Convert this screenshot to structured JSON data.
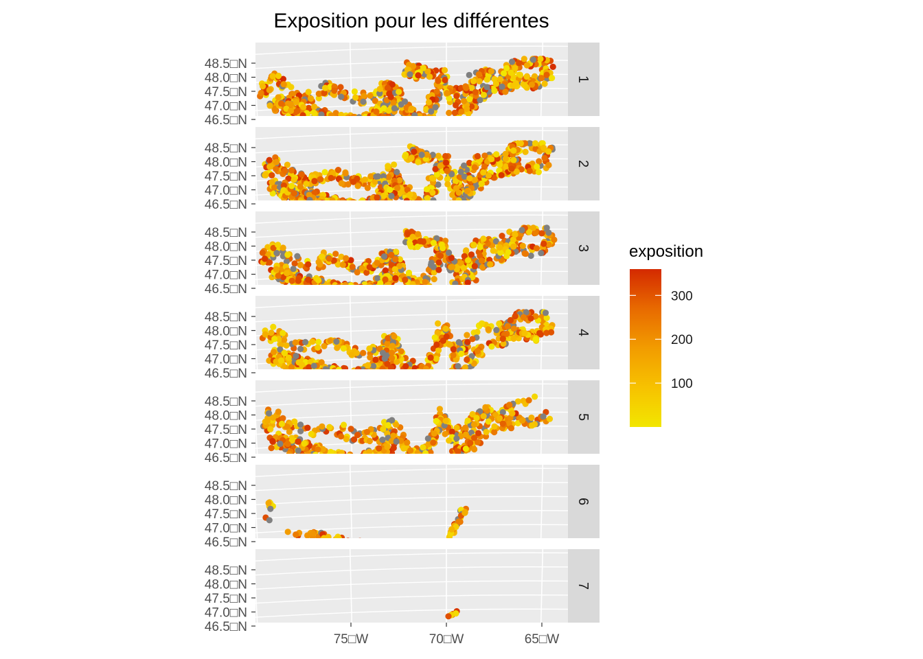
{
  "chart_data": {
    "type": "scatter",
    "title": "Exposition pour les différentes",
    "facet_labels": [
      "1",
      "2",
      "3",
      "4",
      "5",
      "6",
      "7"
    ],
    "y_ticks": [
      {
        "value": 48.5,
        "label": "48.5□N"
      },
      {
        "value": 48.0,
        "label": "48.0□N"
      },
      {
        "value": 47.5,
        "label": "47.5□N"
      },
      {
        "value": 47.0,
        "label": "47.0□N"
      },
      {
        "value": 46.5,
        "label": "46.5□N"
      }
    ],
    "x_ticks": [
      {
        "value": -75,
        "label": "75□W"
      },
      {
        "value": -70,
        "label": "70□W"
      },
      {
        "value": -65,
        "label": "65□W"
      }
    ],
    "xlim": [
      -80,
      -63
    ],
    "ylim": [
      46.1,
      48.8
    ],
    "legend": {
      "title": "exposition",
      "breaks": [
        {
          "value": 300,
          "label": "300"
        },
        {
          "value": 200,
          "label": "200"
        },
        {
          "value": 100,
          "label": "100"
        }
      ],
      "range": [
        0,
        360
      ],
      "colors": [
        "#f2e600",
        "#f7c200",
        "#f29c00",
        "#e86a00",
        "#d42a00"
      ],
      "placement": "right"
    },
    "na_color": "#808080",
    "panel_background": "#ebebeb",
    "strip_background": "#d9d9d9",
    "grid": true
  }
}
